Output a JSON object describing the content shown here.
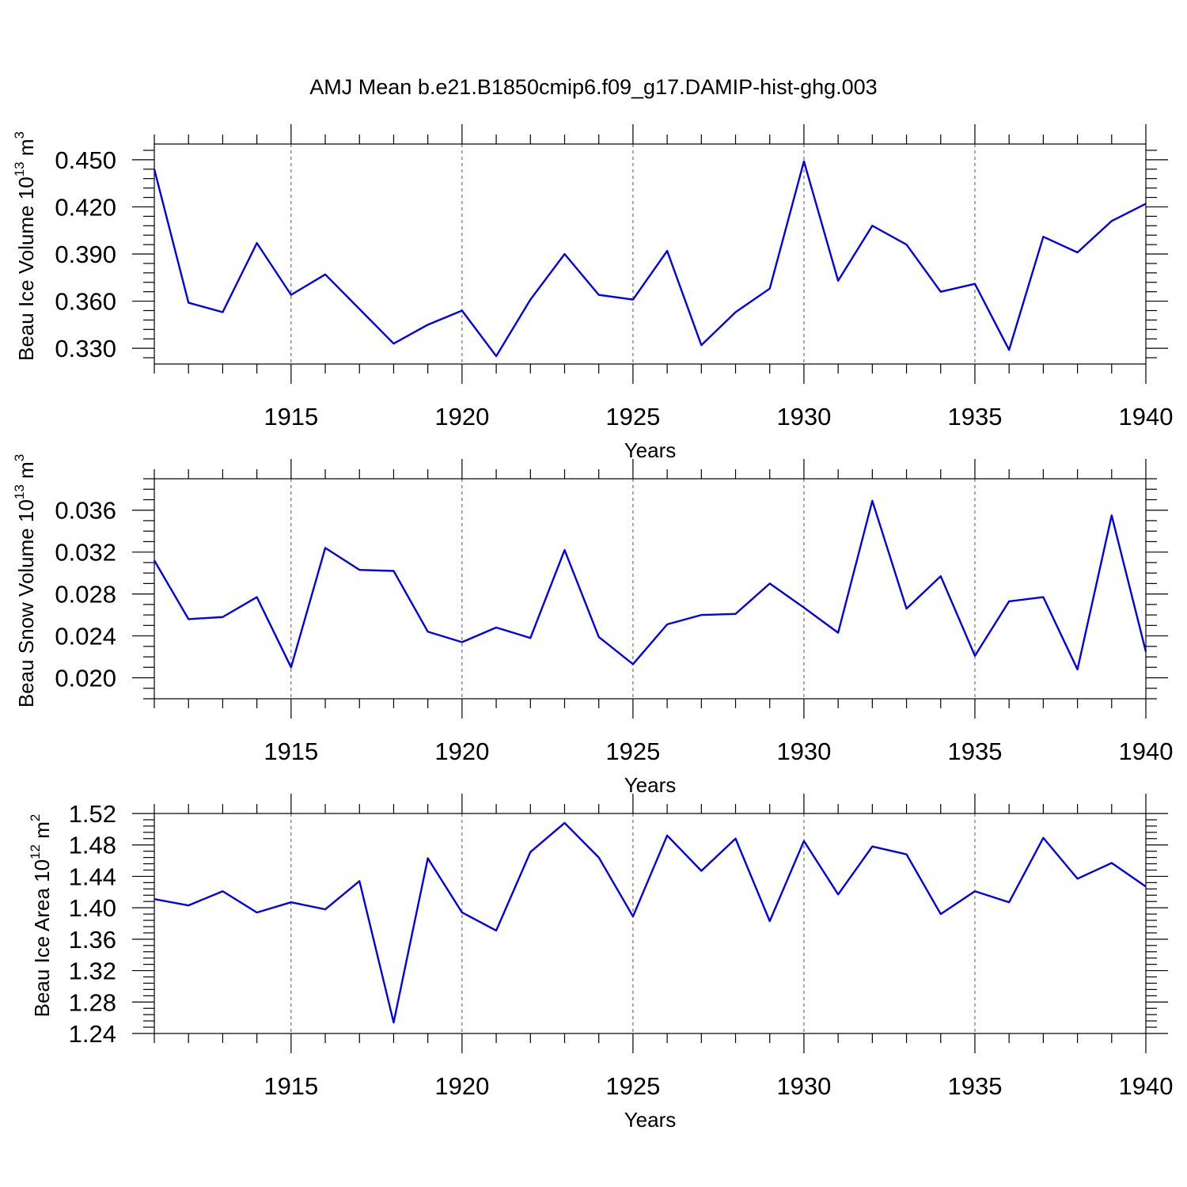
{
  "figure": {
    "title": "AMJ Mean b.e21.B1850cmip6.f09_g17.DAMIP-hist-ghg.003"
  },
  "chart_data": [
    {
      "type": "line",
      "ylabel": "Beau Ice Volume 10",
      "ylabel_exp": "13",
      "ylabel_unit": " m",
      "ylabel_unit_exp": "3",
      "xlabel": "Years",
      "x": [
        1911,
        1912,
        1913,
        1914,
        1915,
        1916,
        1917,
        1918,
        1919,
        1920,
        1921,
        1922,
        1923,
        1924,
        1925,
        1926,
        1927,
        1928,
        1929,
        1930,
        1931,
        1932,
        1933,
        1934,
        1935,
        1936,
        1937,
        1938,
        1939,
        1940
      ],
      "values": [
        0.444,
        0.359,
        0.353,
        0.397,
        0.364,
        0.377,
        0.355,
        0.333,
        0.345,
        0.354,
        0.325,
        0.361,
        0.39,
        0.364,
        0.361,
        0.392,
        0.332,
        0.353,
        0.368,
        0.449,
        0.373,
        0.408,
        0.396,
        0.366,
        0.371,
        0.329,
        0.401,
        0.391,
        0.411,
        0.422
      ],
      "xlim": [
        1911,
        1940
      ],
      "ylim": [
        0.32,
        0.46
      ],
      "xticks": [
        1915,
        1920,
        1925,
        1930,
        1935,
        1940
      ],
      "xtick_labels": [
        "1915",
        "1920",
        "1925",
        "1930",
        "1935",
        "1940"
      ],
      "yticks": [
        0.33,
        0.36,
        0.39,
        0.42,
        0.45
      ],
      "ytick_labels": [
        "0.330",
        "0.360",
        "0.390",
        "0.420",
        "0.450"
      ],
      "x_minor_step": 1,
      "y_minor_step": 0.006,
      "grid": "vertical dashed at major x ticks",
      "color": "#0000ee"
    },
    {
      "type": "line",
      "ylabel": "Beau Snow Volume 10",
      "ylabel_exp": "13",
      "ylabel_unit": " m",
      "ylabel_unit_exp": "3",
      "xlabel": "Years",
      "x": [
        1911,
        1912,
        1913,
        1914,
        1915,
        1916,
        1917,
        1918,
        1919,
        1920,
        1921,
        1922,
        1923,
        1924,
        1925,
        1926,
        1927,
        1928,
        1929,
        1930,
        1931,
        1932,
        1933,
        1934,
        1935,
        1936,
        1937,
        1938,
        1939,
        1940
      ],
      "values": [
        0.0312,
        0.0256,
        0.0258,
        0.0277,
        0.021,
        0.0324,
        0.0303,
        0.0302,
        0.0244,
        0.0234,
        0.0248,
        0.0238,
        0.0322,
        0.0239,
        0.0213,
        0.0251,
        0.026,
        0.0261,
        0.029,
        0.0267,
        0.0243,
        0.0369,
        0.0266,
        0.0297,
        0.0221,
        0.0273,
        0.0277,
        0.0208,
        0.0355,
        0.0225
      ],
      "xlim": [
        1911,
        1940
      ],
      "ylim": [
        0.018,
        0.039
      ],
      "xticks": [
        1915,
        1920,
        1925,
        1930,
        1935,
        1940
      ],
      "xtick_labels": [
        "1915",
        "1920",
        "1925",
        "1930",
        "1935",
        "1940"
      ],
      "yticks": [
        0.02,
        0.024,
        0.028,
        0.032,
        0.036
      ],
      "ytick_labels": [
        "0.020",
        "0.024",
        "0.028",
        "0.032",
        "0.036"
      ],
      "x_minor_step": 1,
      "y_minor_step": 0.001,
      "grid": "vertical dashed at major x ticks",
      "color": "#0000ee"
    },
    {
      "type": "line",
      "ylabel": "Beau Ice Area 10",
      "ylabel_exp": "12",
      "ylabel_unit": " m",
      "ylabel_unit_exp": "2",
      "xlabel": "Years",
      "x": [
        1911,
        1912,
        1913,
        1914,
        1915,
        1916,
        1917,
        1918,
        1919,
        1920,
        1921,
        1922,
        1923,
        1924,
        1925,
        1926,
        1927,
        1928,
        1929,
        1930,
        1931,
        1932,
        1933,
        1934,
        1935,
        1936,
        1937,
        1938,
        1939,
        1940
      ],
      "values": [
        1.411,
        1.403,
        1.421,
        1.394,
        1.407,
        1.398,
        1.434,
        1.254,
        1.463,
        1.394,
        1.371,
        1.471,
        1.508,
        1.464,
        1.389,
        1.492,
        1.447,
        1.488,
        1.383,
        1.485,
        1.417,
        1.478,
        1.468,
        1.392,
        1.421,
        1.407,
        1.489,
        1.437,
        1.457,
        1.427
      ],
      "xlim": [
        1911,
        1940
      ],
      "ylim": [
        1.24,
        1.52
      ],
      "xticks": [
        1915,
        1920,
        1925,
        1930,
        1935,
        1940
      ],
      "xtick_labels": [
        "1915",
        "1920",
        "1925",
        "1930",
        "1935",
        "1940"
      ],
      "yticks": [
        1.24,
        1.28,
        1.32,
        1.36,
        1.4,
        1.44,
        1.48,
        1.52
      ],
      "ytick_labels": [
        "1.24",
        "1.28",
        "1.32",
        "1.36",
        "1.40",
        "1.44",
        "1.48",
        "1.52"
      ],
      "x_minor_step": 1,
      "y_minor_step": 0.008,
      "grid": "vertical dashed at major x ticks",
      "color": "#0000ee"
    }
  ]
}
